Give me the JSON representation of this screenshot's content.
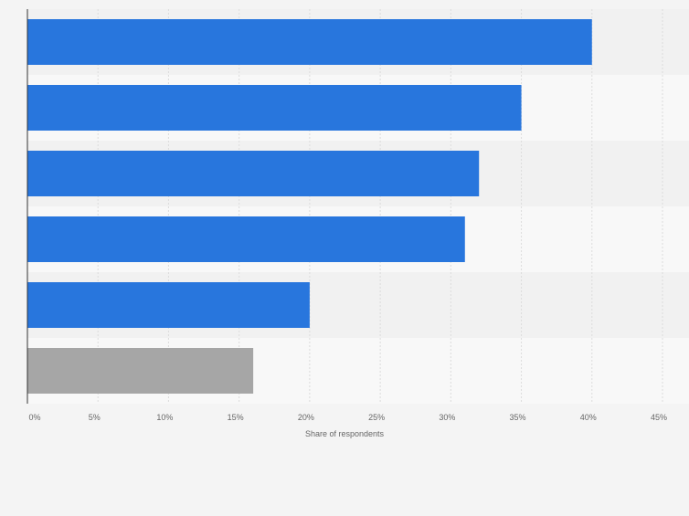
{
  "chart_data": {
    "type": "bar",
    "orientation": "horizontal",
    "xlabel": "Share of respondents",
    "xlim": [
      0,
      45
    ],
    "x_ticks": [
      0,
      5,
      10,
      15,
      20,
      25,
      30,
      35,
      40,
      45
    ],
    "tick_suffix": "%",
    "grid": true,
    "values": [
      40,
      35,
      32,
      31,
      20,
      16
    ],
    "colors": [
      "#2876dd",
      "#2876dd",
      "#2876dd",
      "#2876dd",
      "#2876dd",
      "#a6a6a6"
    ]
  }
}
